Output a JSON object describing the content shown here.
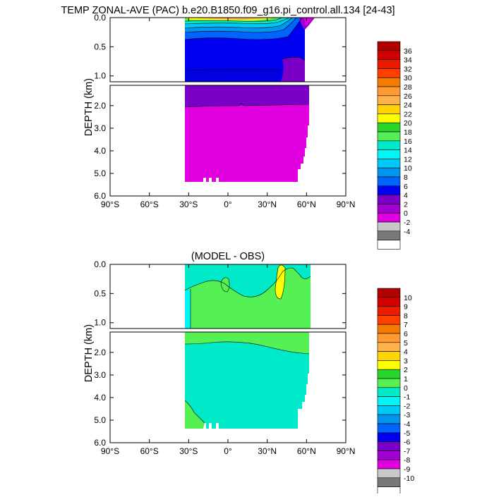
{
  "chart_data": [
    {
      "type": "contour",
      "title": "TEMP ZONAL-AVE (PAC) b.e20.B1850.f09_g16.pi_control.all.134 [24-43]",
      "ylabel": "DEPTH (km)",
      "xticks": [
        "90°S",
        "60°S",
        "30°S",
        "0°",
        "30°N",
        "60°N",
        "90°N"
      ],
      "xlim": [
        -90,
        90
      ],
      "upper_yticks": [
        "0.0",
        "0.5",
        "1.0"
      ],
      "upper_ylim": [
        0,
        1.1
      ],
      "lower_yticks": [
        "2.0",
        "3.0",
        "4.0",
        "5.0",
        "6.0"
      ],
      "lower_ylim": [
        1.1,
        6.0
      ],
      "colorbar_labels": [
        "36",
        "34",
        "32",
        "30",
        "28",
        "26",
        "24",
        "22",
        "20",
        "18",
        "16",
        "14",
        "12",
        "10",
        "8",
        "6",
        "4",
        "2",
        "0",
        "-2",
        "-4"
      ],
      "colorbar_colors": [
        "#b10000",
        "#d20000",
        "#ed1a00",
        "#ff4000",
        "#f57a00",
        "#ff9a30",
        "#ffb24a",
        "#ffd400",
        "#ffff00",
        "#2ad52a",
        "#54f054",
        "#00eaca",
        "#00f5f5",
        "#00c8f5",
        "#0096f0",
        "#0064ff",
        "#0000f0",
        "#7a00c8",
        "#a000d0",
        "#e000e0",
        "#c8c8c8",
        "#787878",
        "#ffffff"
      ]
    },
    {
      "type": "contour",
      "title": "(MODEL - OBS)",
      "ylabel": "DEPTH (km)",
      "xticks": [
        "90°S",
        "60°S",
        "30°S",
        "0°",
        "30°N",
        "60°N",
        "90°N"
      ],
      "xlim": [
        -90,
        90
      ],
      "upper_yticks": [
        "0.0",
        "0.5",
        "1.0"
      ],
      "upper_ylim": [
        0,
        1.1
      ],
      "lower_yticks": [
        "2.0",
        "3.0",
        "4.0",
        "5.0",
        "6.0"
      ],
      "lower_ylim": [
        1.1,
        6.0
      ],
      "colorbar_labels": [
        "10",
        "9",
        "8",
        "7",
        "6",
        "5",
        "4",
        "3",
        "2",
        "1",
        "0",
        "-1",
        "-2",
        "-3",
        "-4",
        "-5",
        "-6",
        "-7",
        "-8",
        "-9",
        "-10"
      ],
      "colorbar_colors": [
        "#b10000",
        "#d20000",
        "#ed1a00",
        "#ff4000",
        "#f57a00",
        "#ff9a30",
        "#ffb24a",
        "#ffd400",
        "#ffff00",
        "#2ad52a",
        "#54f054",
        "#00eaca",
        "#00f5f5",
        "#00c8f5",
        "#0096f0",
        "#0064ff",
        "#0000f0",
        "#7a00c8",
        "#a000d0",
        "#e000e0",
        "#c8c8c8",
        "#787878",
        "#ffffff"
      ]
    }
  ]
}
